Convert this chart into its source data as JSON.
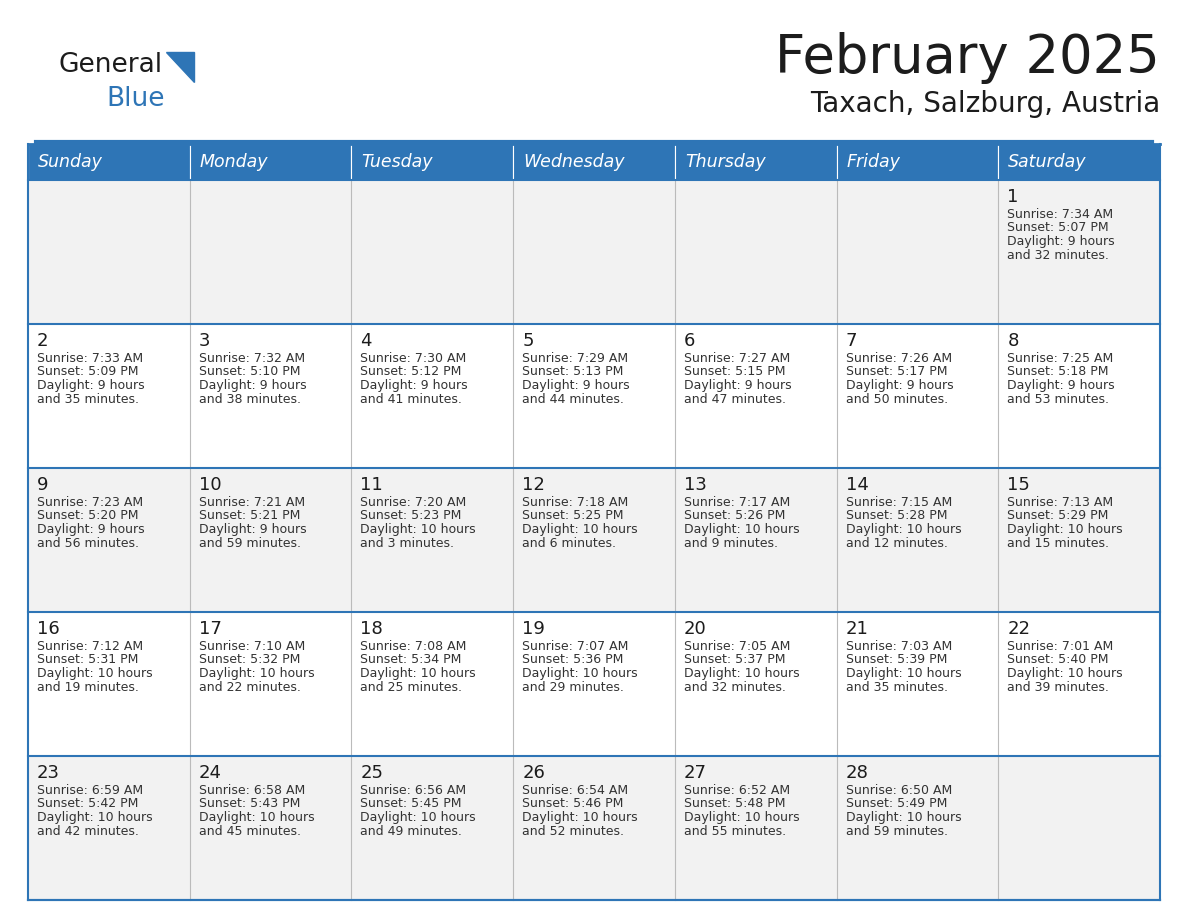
{
  "title": "February 2025",
  "subtitle": "Taxach, Salzburg, Austria",
  "header_bg": "#2E75B6",
  "header_text_color": "#FFFFFF",
  "row_bg_odd": "#F2F2F2",
  "row_bg_even": "#FFFFFF",
  "border_color": "#2E75B6",
  "grid_color": "#AAAAAA",
  "day_headers": [
    "Sunday",
    "Monday",
    "Tuesday",
    "Wednesday",
    "Thursday",
    "Friday",
    "Saturday"
  ],
  "text_color": "#333333",
  "days": [
    {
      "day": 1,
      "col": 6,
      "row": 0,
      "sunrise": "7:34 AM",
      "sunset": "5:07 PM",
      "daylight_h": "9 hours",
      "daylight_m": "32 minutes."
    },
    {
      "day": 2,
      "col": 0,
      "row": 1,
      "sunrise": "7:33 AM",
      "sunset": "5:09 PM",
      "daylight_h": "9 hours",
      "daylight_m": "35 minutes."
    },
    {
      "day": 3,
      "col": 1,
      "row": 1,
      "sunrise": "7:32 AM",
      "sunset": "5:10 PM",
      "daylight_h": "9 hours",
      "daylight_m": "38 minutes."
    },
    {
      "day": 4,
      "col": 2,
      "row": 1,
      "sunrise": "7:30 AM",
      "sunset": "5:12 PM",
      "daylight_h": "9 hours",
      "daylight_m": "41 minutes."
    },
    {
      "day": 5,
      "col": 3,
      "row": 1,
      "sunrise": "7:29 AM",
      "sunset": "5:13 PM",
      "daylight_h": "9 hours",
      "daylight_m": "44 minutes."
    },
    {
      "day": 6,
      "col": 4,
      "row": 1,
      "sunrise": "7:27 AM",
      "sunset": "5:15 PM",
      "daylight_h": "9 hours",
      "daylight_m": "47 minutes."
    },
    {
      "day": 7,
      "col": 5,
      "row": 1,
      "sunrise": "7:26 AM",
      "sunset": "5:17 PM",
      "daylight_h": "9 hours",
      "daylight_m": "50 minutes."
    },
    {
      "day": 8,
      "col": 6,
      "row": 1,
      "sunrise": "7:25 AM",
      "sunset": "5:18 PM",
      "daylight_h": "9 hours",
      "daylight_m": "53 minutes."
    },
    {
      "day": 9,
      "col": 0,
      "row": 2,
      "sunrise": "7:23 AM",
      "sunset": "5:20 PM",
      "daylight_h": "9 hours",
      "daylight_m": "56 minutes."
    },
    {
      "day": 10,
      "col": 1,
      "row": 2,
      "sunrise": "7:21 AM",
      "sunset": "5:21 PM",
      "daylight_h": "9 hours",
      "daylight_m": "59 minutes."
    },
    {
      "day": 11,
      "col": 2,
      "row": 2,
      "sunrise": "7:20 AM",
      "sunset": "5:23 PM",
      "daylight_h": "10 hours",
      "daylight_m": "3 minutes."
    },
    {
      "day": 12,
      "col": 3,
      "row": 2,
      "sunrise": "7:18 AM",
      "sunset": "5:25 PM",
      "daylight_h": "10 hours",
      "daylight_m": "6 minutes."
    },
    {
      "day": 13,
      "col": 4,
      "row": 2,
      "sunrise": "7:17 AM",
      "sunset": "5:26 PM",
      "daylight_h": "10 hours",
      "daylight_m": "9 minutes."
    },
    {
      "day": 14,
      "col": 5,
      "row": 2,
      "sunrise": "7:15 AM",
      "sunset": "5:28 PM",
      "daylight_h": "10 hours",
      "daylight_m": "12 minutes."
    },
    {
      "day": 15,
      "col": 6,
      "row": 2,
      "sunrise": "7:13 AM",
      "sunset": "5:29 PM",
      "daylight_h": "10 hours",
      "daylight_m": "15 minutes."
    },
    {
      "day": 16,
      "col": 0,
      "row": 3,
      "sunrise": "7:12 AM",
      "sunset": "5:31 PM",
      "daylight_h": "10 hours",
      "daylight_m": "19 minutes."
    },
    {
      "day": 17,
      "col": 1,
      "row": 3,
      "sunrise": "7:10 AM",
      "sunset": "5:32 PM",
      "daylight_h": "10 hours",
      "daylight_m": "22 minutes."
    },
    {
      "day": 18,
      "col": 2,
      "row": 3,
      "sunrise": "7:08 AM",
      "sunset": "5:34 PM",
      "daylight_h": "10 hours",
      "daylight_m": "25 minutes."
    },
    {
      "day": 19,
      "col": 3,
      "row": 3,
      "sunrise": "7:07 AM",
      "sunset": "5:36 PM",
      "daylight_h": "10 hours",
      "daylight_m": "29 minutes."
    },
    {
      "day": 20,
      "col": 4,
      "row": 3,
      "sunrise": "7:05 AM",
      "sunset": "5:37 PM",
      "daylight_h": "10 hours",
      "daylight_m": "32 minutes."
    },
    {
      "day": 21,
      "col": 5,
      "row": 3,
      "sunrise": "7:03 AM",
      "sunset": "5:39 PM",
      "daylight_h": "10 hours",
      "daylight_m": "35 minutes."
    },
    {
      "day": 22,
      "col": 6,
      "row": 3,
      "sunrise": "7:01 AM",
      "sunset": "5:40 PM",
      "daylight_h": "10 hours",
      "daylight_m": "39 minutes."
    },
    {
      "day": 23,
      "col": 0,
      "row": 4,
      "sunrise": "6:59 AM",
      "sunset": "5:42 PM",
      "daylight_h": "10 hours",
      "daylight_m": "42 minutes."
    },
    {
      "day": 24,
      "col": 1,
      "row": 4,
      "sunrise": "6:58 AM",
      "sunset": "5:43 PM",
      "daylight_h": "10 hours",
      "daylight_m": "45 minutes."
    },
    {
      "day": 25,
      "col": 2,
      "row": 4,
      "sunrise": "6:56 AM",
      "sunset": "5:45 PM",
      "daylight_h": "10 hours",
      "daylight_m": "49 minutes."
    },
    {
      "day": 26,
      "col": 3,
      "row": 4,
      "sunrise": "6:54 AM",
      "sunset": "5:46 PM",
      "daylight_h": "10 hours",
      "daylight_m": "52 minutes."
    },
    {
      "day": 27,
      "col": 4,
      "row": 4,
      "sunrise": "6:52 AM",
      "sunset": "5:48 PM",
      "daylight_h": "10 hours",
      "daylight_m": "55 minutes."
    },
    {
      "day": 28,
      "col": 5,
      "row": 4,
      "sunrise": "6:50 AM",
      "sunset": "5:49 PM",
      "daylight_h": "10 hours",
      "daylight_m": "59 minutes."
    }
  ],
  "num_rows": 5,
  "num_cols": 7,
  "fig_width": 11.88,
  "fig_height": 9.18,
  "dpi": 100
}
